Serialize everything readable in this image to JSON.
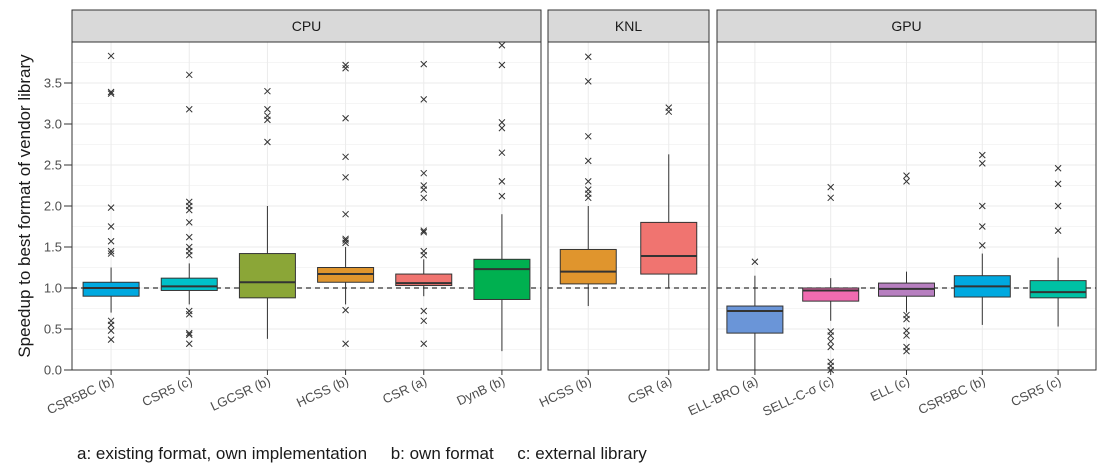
{
  "chart_data": {
    "type": "box",
    "ylabel": "Speedup to best format of vendor library",
    "ylim": [
      0,
      4.0
    ],
    "yticks": [
      0.0,
      0.5,
      1.0,
      1.5,
      2.0,
      2.5,
      3.0,
      3.5
    ],
    "ytick_labels": [
      "0.0",
      "0.5",
      "1.0",
      "1.5",
      "2.0",
      "2.5",
      "3.0",
      "3.5"
    ],
    "reference_line": 1.0,
    "grid": true,
    "caption": "a: existing format, own implementation     b: own format     c: external library",
    "panels": [
      {
        "title": "CPU",
        "boxes": [
          {
            "label": "CSR5BC (b)",
            "color": "#00A9E0",
            "whisker_low": 0.7,
            "q1": 0.9,
            "median": 1.0,
            "q3": 1.07,
            "whisker_high": 1.25,
            "outliers": [
              0.37,
              0.48,
              0.55,
              0.6,
              1.42,
              1.45,
              1.57,
              1.75,
              1.98,
              3.37,
              3.39,
              3.83
            ]
          },
          {
            "label": "CSR5 (c)",
            "color": "#00C1C9",
            "whisker_low": 0.8,
            "q1": 0.97,
            "median": 1.02,
            "q3": 1.12,
            "whisker_high": 1.3,
            "outliers": [
              0.32,
              0.43,
              0.45,
              0.68,
              0.72,
              1.4,
              1.45,
              1.5,
              1.62,
              1.8,
              1.95,
              2.0,
              2.05,
              3.18,
              3.6
            ]
          },
          {
            "label": "LGCSR (b)",
            "color": "#8BA637",
            "whisker_low": 0.38,
            "q1": 0.88,
            "median": 1.07,
            "q3": 1.42,
            "whisker_high": 2.0,
            "outliers": [
              2.78,
              3.05,
              3.1,
              3.18,
              3.4
            ]
          },
          {
            "label": "HCSS (b)",
            "color": "#E0952D",
            "whisker_low": 0.8,
            "q1": 1.07,
            "median": 1.17,
            "q3": 1.25,
            "whisker_high": 1.5,
            "outliers": [
              0.32,
              0.73,
              1.55,
              1.58,
              1.6,
              1.9,
              2.35,
              2.6,
              3.07,
              3.68,
              3.72
            ]
          },
          {
            "label": "CSR (a)",
            "color": "#F07470",
            "whisker_low": 0.9,
            "q1": 1.03,
            "median": 1.06,
            "q3": 1.17,
            "whisker_high": 1.35,
            "outliers": [
              0.32,
              0.6,
              0.72,
              1.4,
              1.45,
              1.68,
              1.7,
              2.1,
              2.2,
              2.25,
              2.4,
              3.3,
              3.73
            ]
          },
          {
            "label": "DynB (b)",
            "color": "#00B050",
            "whisker_low": 0.23,
            "q1": 0.86,
            "median": 1.23,
            "q3": 1.35,
            "whisker_high": 1.9,
            "outliers": [
              2.12,
              2.3,
              2.65,
              2.95,
              3.02,
              3.72,
              3.96
            ]
          }
        ]
      },
      {
        "title": "KNL",
        "boxes": [
          {
            "label": "HCSS (b)",
            "color": "#E0952D",
            "whisker_low": 0.78,
            "q1": 1.05,
            "median": 1.2,
            "q3": 1.47,
            "whisker_high": 2.0,
            "outliers": [
              2.1,
              2.15,
              2.2,
              2.3,
              2.55,
              2.85,
              3.52,
              3.82
            ]
          },
          {
            "label": "CSR (a)",
            "color": "#F07470",
            "whisker_low": 1.0,
            "q1": 1.17,
            "median": 1.39,
            "q3": 1.8,
            "whisker_high": 2.63,
            "outliers": [
              3.15,
              3.2
            ]
          }
        ]
      },
      {
        "title": "GPU",
        "boxes": [
          {
            "label": "ELL-BRO (a)",
            "color": "#6A95D8",
            "whisker_low": 0.0,
            "q1": 0.45,
            "median": 0.72,
            "q3": 0.78,
            "whisker_high": 1.15,
            "outliers": [
              1.32
            ]
          },
          {
            "label": "SELL-C-σ (c)",
            "color": "#F06BB0",
            "whisker_low": 0.6,
            "q1": 0.84,
            "median": 0.97,
            "q3": 1.0,
            "whisker_high": 1.12,
            "outliers": [
              0.0,
              0.05,
              0.1,
              0.28,
              0.35,
              0.42,
              0.47,
              2.1,
              2.23
            ]
          },
          {
            "label": "ELL (c)",
            "color": "#B77FC0",
            "whisker_low": 0.7,
            "q1": 0.9,
            "median": 0.99,
            "q3": 1.06,
            "whisker_high": 1.2,
            "outliers": [
              0.23,
              0.28,
              0.42,
              0.48,
              0.62,
              0.67,
              2.3,
              2.37
            ]
          },
          {
            "label": "CSR5BC (b)",
            "color": "#00A9E0",
            "whisker_low": 0.55,
            "q1": 0.89,
            "median": 1.02,
            "q3": 1.15,
            "whisker_high": 1.42,
            "outliers": [
              1.52,
              1.75,
              2.0,
              2.52,
              2.62
            ]
          },
          {
            "label": "CSR5 (c)",
            "color": "#00C1A4",
            "whisker_low": 0.53,
            "q1": 0.88,
            "median": 0.95,
            "q3": 1.09,
            "whisker_high": 1.37,
            "outliers": [
              1.7,
              2.0,
              2.27,
              2.46
            ]
          }
        ]
      }
    ]
  }
}
